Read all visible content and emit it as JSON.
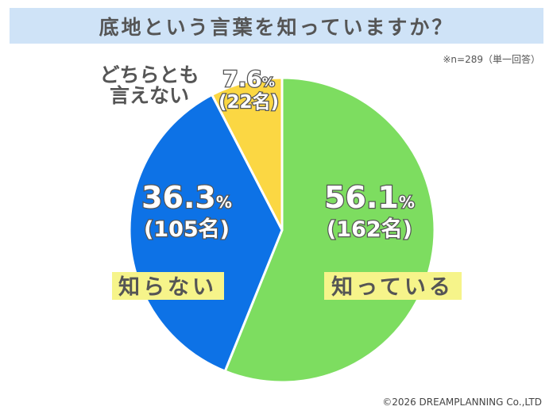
{
  "header": {
    "title": "底地という言葉を知っていますか？"
  },
  "note": "※n=289（単一回答）",
  "copyright": "©2026 DREAMPLANNING Co.,LTD",
  "chart_data": {
    "type": "pie",
    "title": "底地という言葉を知っていますか？",
    "start": "top",
    "direction": "clockwise",
    "slices": [
      {
        "label": "知っている",
        "percent": 56.1,
        "pct_text": "56.1",
        "count_text": "(162名)",
        "color": "#7ddd60"
      },
      {
        "label": "知らない",
        "percent": 36.3,
        "pct_text": "36.3",
        "count_text": "(105名)",
        "color": "#0d72e6"
      },
      {
        "label": "どちらとも言えない",
        "label_line1": "どちらとも",
        "label_line2": "言えない",
        "percent": 7.6,
        "pct_text": "7.6",
        "count_text": "(22名)",
        "color": "#fbd743"
      }
    ],
    "percent_sign": "%"
  }
}
